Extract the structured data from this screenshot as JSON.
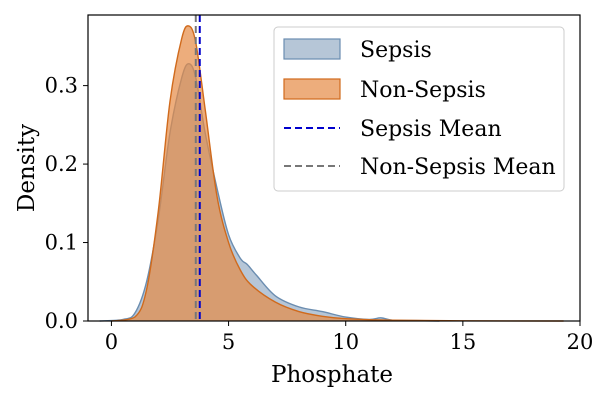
{
  "chart_data": {
    "type": "area",
    "xlabel": "Phosphate",
    "ylabel": "Density",
    "xlim": [
      -1.0,
      20.0
    ],
    "ylim": [
      0.0,
      0.39
    ],
    "x_ticks": [
      0,
      5,
      10,
      15,
      20
    ],
    "x_tick_labels": [
      "0",
      "5",
      "10",
      "15",
      "20"
    ],
    "y_ticks": [
      0.0,
      0.1,
      0.2,
      0.3
    ],
    "y_tick_labels": [
      "0.0",
      "0.1",
      "0.2",
      "0.3"
    ],
    "grid": false,
    "legend_position": "top-right",
    "series": [
      {
        "name": "Sepsis",
        "kind": "density-fill",
        "fill_color": "#7a98b6",
        "line_color": "#6b8db0",
        "x": [
          -0.5,
          0.5,
          1.0,
          1.5,
          2.0,
          2.5,
          3.0,
          3.3,
          3.6,
          4.0,
          4.5,
          5.0,
          5.5,
          5.8,
          6.2,
          7.0,
          8.0,
          9.0,
          10.0,
          11.0,
          11.5,
          12.0,
          13.0,
          14.0
        ],
        "y": [
          0.0,
          0.002,
          0.01,
          0.05,
          0.13,
          0.24,
          0.31,
          0.328,
          0.31,
          0.24,
          0.17,
          0.11,
          0.08,
          0.072,
          0.058,
          0.032,
          0.018,
          0.012,
          0.005,
          0.002,
          0.004,
          0.001,
          0.0005,
          0.0
        ]
      },
      {
        "name": "Non-Sepsis",
        "kind": "density-fill",
        "fill_color": "#e58a45",
        "line_color": "#d06a1c",
        "x": [
          0.0,
          1.0,
          1.5,
          2.0,
          2.5,
          3.0,
          3.3,
          3.6,
          4.0,
          4.5,
          5.0,
          5.5,
          6.0,
          7.0,
          8.0,
          9.0,
          10.0,
          12.0,
          15.0,
          19.3
        ],
        "y": [
          0.0,
          0.005,
          0.04,
          0.14,
          0.28,
          0.36,
          0.376,
          0.355,
          0.27,
          0.16,
          0.1,
          0.065,
          0.045,
          0.024,
          0.012,
          0.006,
          0.003,
          0.001,
          0.0003,
          0.0
        ]
      }
    ],
    "mean_lines": [
      {
        "name": "Sepsis Mean",
        "x": 3.77,
        "color": "#0000cc",
        "dash": "dashed"
      },
      {
        "name": "Non-Sepsis Mean",
        "x": 3.6,
        "color": "#777777",
        "dash": "dashed"
      }
    ],
    "legend_entries": [
      "Sepsis",
      "Non-Sepsis",
      "Sepsis Mean",
      "Non-Sepsis Mean"
    ]
  }
}
